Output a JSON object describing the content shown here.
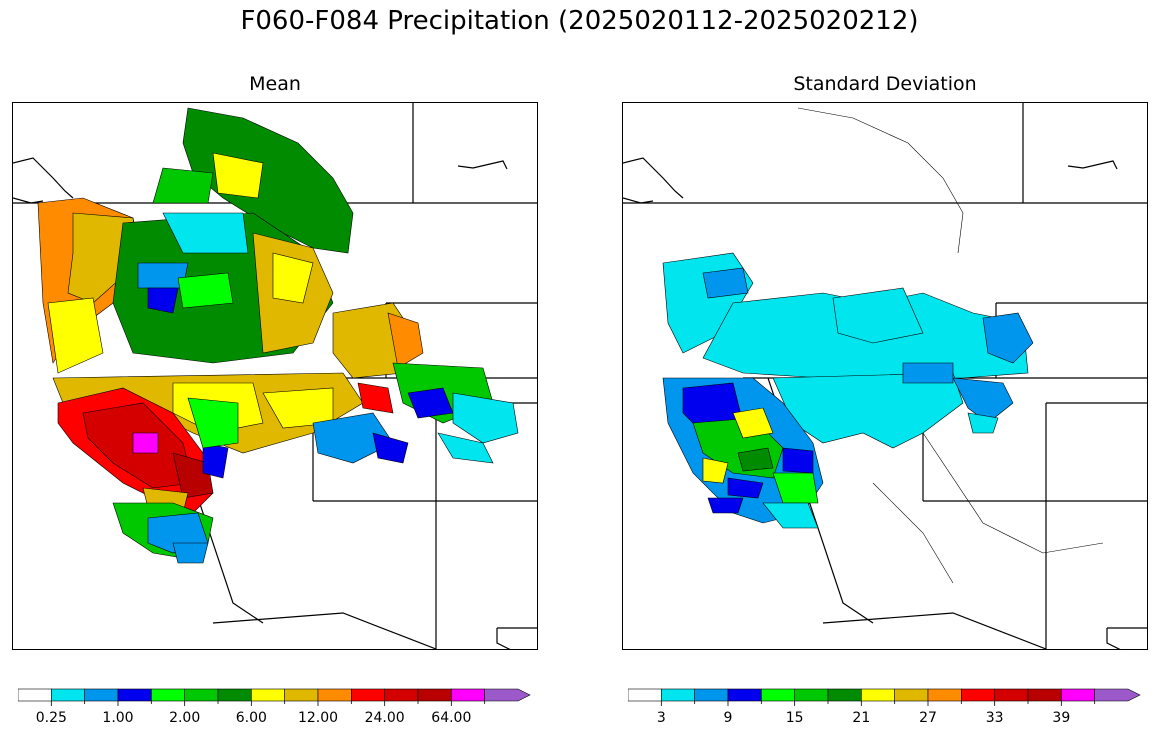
{
  "title": "F060-F084 Precipitation (2025020112-2025020212)",
  "panels": [
    {
      "id": "mean",
      "title": "Mean",
      "colorbar": {
        "colors": [
          "#ffffff",
          "#00e5ee",
          "#0096ee",
          "#0000ee",
          "#00ff00",
          "#00c800",
          "#008b00",
          "#ffff00",
          "#e0b800",
          "#ff8c00",
          "#ff0000",
          "#d40000",
          "#b80000",
          "#ff00ff",
          "#9b59c9"
        ],
        "tick_labels": [
          "0.25",
          "1.00",
          "2.00",
          "6.00",
          "12.00",
          "24.00",
          "64.00"
        ],
        "label_every": 2,
        "extend": "max"
      }
    },
    {
      "id": "stdev",
      "title": "Standard Deviation",
      "colorbar": {
        "colors": [
          "#ffffff",
          "#00e5ee",
          "#0096ee",
          "#0000ee",
          "#00ff00",
          "#00c800",
          "#008b00",
          "#ffff00",
          "#e0b800",
          "#ff8c00",
          "#ff0000",
          "#d40000",
          "#b80000",
          "#ff00ff",
          "#9b59c9"
        ],
        "tick_labels": [
          "3",
          "9",
          "15",
          "21",
          "27",
          "33",
          "39"
        ],
        "label_every": 2,
        "extend": "max"
      }
    }
  ]
}
